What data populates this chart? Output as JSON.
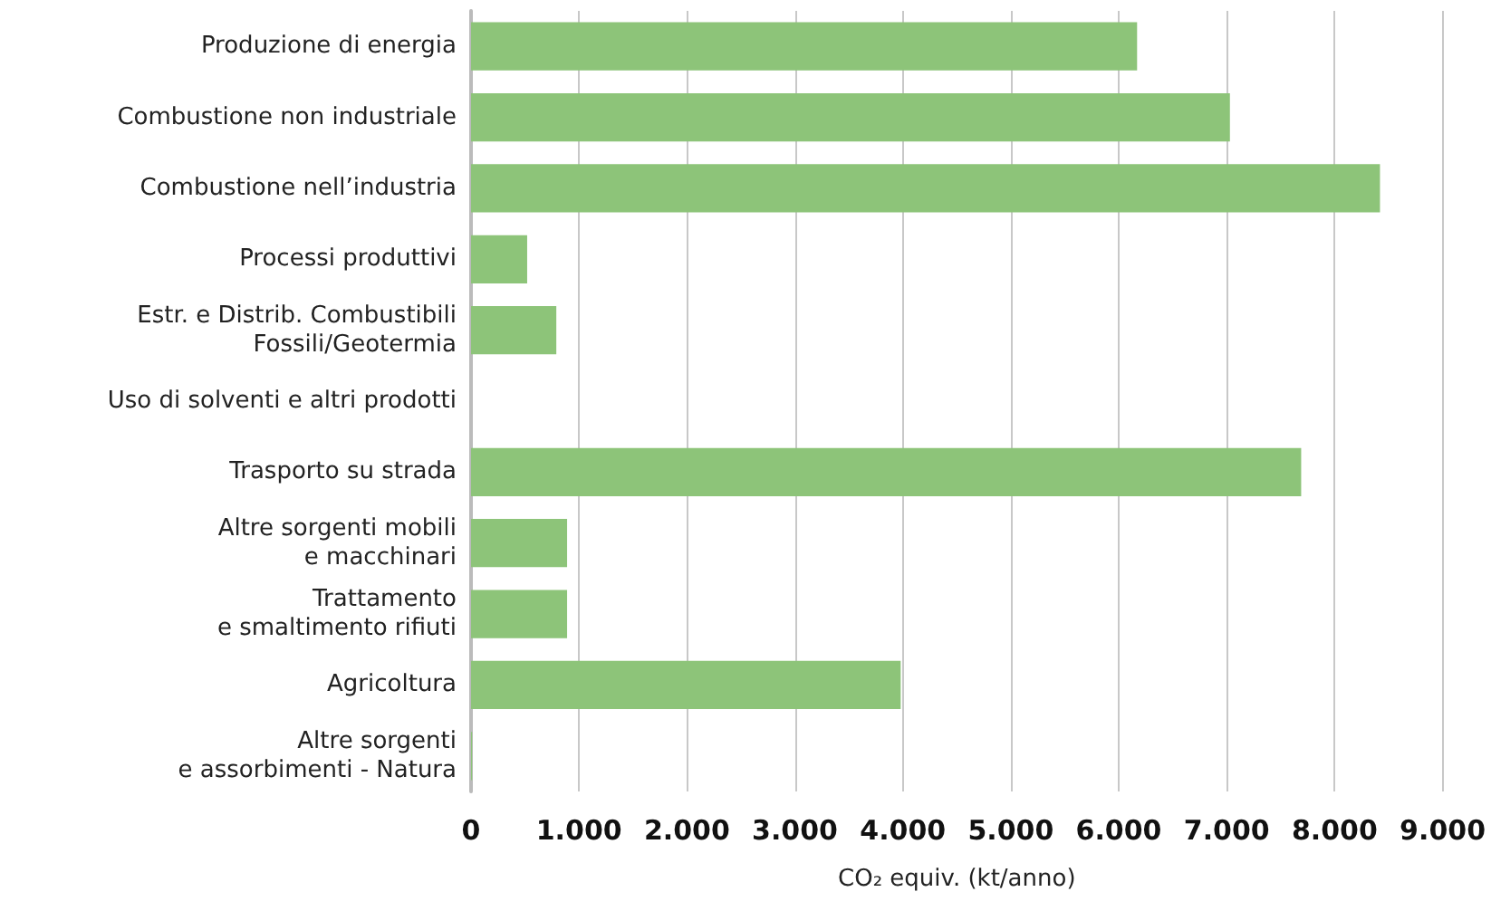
{
  "chart_data": {
    "type": "bar",
    "orientation": "horizontal",
    "categories": [
      "Produzione di energia",
      "Combustione non industriale",
      "Combustione nell’industria",
      "Processi produttivi",
      "Estr. e Distrib. Combustibili\nFossili/Geotermia",
      "Uso di solventi e altri prodotti",
      "Trasporto su strada",
      "Altre sorgenti mobili\ne macchinari",
      "Trattamento\ne smaltimento rifiuti",
      "Agricoltura",
      "Altre sorgenti\ne assorbimenti - Natura"
    ],
    "values": [
      6170,
      7030,
      8420,
      520,
      790,
      0,
      7690,
      890,
      890,
      3980,
      10
    ],
    "color": "#8dc479",
    "xlabel": "CO₂ equiv. (kt/anno)",
    "xlim": [
      0,
      9000
    ],
    "xticks": [
      0,
      {
        "value": 1000,
        "label": "1.000"
      },
      {
        "value": 2000,
        "label": "2.000"
      },
      {
        "value": 3000,
        "label": "3.000"
      },
      {
        "value": 4000,
        "label": "4.000"
      },
      {
        "value": 5000,
        "label": "5.000"
      },
      {
        "value": 6000,
        "label": "6.000"
      },
      {
        "value": 7000,
        "label": "7.000"
      },
      {
        "value": 8000,
        "label": "8.000"
      },
      {
        "value": 9000,
        "label": "9.000"
      }
    ],
    "grid": "x"
  }
}
